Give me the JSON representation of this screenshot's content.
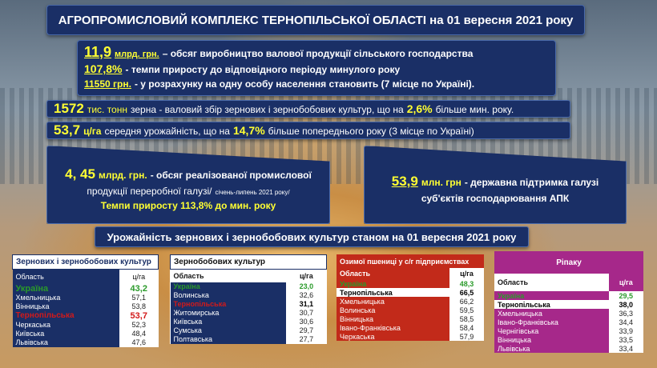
{
  "title": "АГРОПРОМИСЛОВИЙ КОМПЛЕКС ТЕРНОПІЛЬСЬКОЇ ОБЛАСТІ на 01 вересня 2021 року",
  "info": {
    "l1_big": "11,9",
    "l1_unit": "млрд. грн.",
    "l1_text": "– обсяг виробництво валової продукції сільського господарства",
    "l2_big": "107,8%",
    "l2_text": "- темпи приросту до відповідного періоду минулого року",
    "l3_big": "11550 грн.",
    "l3_text": "-  у розрахунку на одну особу населення становить (7 місце по Україні)."
  },
  "line2": {
    "big": "1572",
    "unit": "тис. тонн",
    "text1": "зерна - валовий збір зернових і зернобобових культур, що на",
    "pct": "2,6%",
    "text2": "більше мин. року."
  },
  "line3": {
    "big": "53,7",
    "unit": "ц/га",
    "text1": "середня урожайність, що на",
    "pct": "14,7%",
    "text2": "більше попереднього року (3 місце по Україні)"
  },
  "box4": {
    "big": "4, 45",
    "unit": "млрд. грн.",
    "t1": "- обсяг реалізованої промислової",
    "t2": "продукції переробної галузі/",
    "t2small": "січень-липень 2021 року/",
    "t3": "Темпи приросту 113,8% до мин. року"
  },
  "box5": {
    "big": "53,9",
    "unit": "млн. грн",
    "t1": "-  державна підтримка галузі",
    "t2": "суб'єктів господарювання АПК"
  },
  "subtitle": "Урожайність зернових і зернобобових культур станом на 01 вересня 2021 року",
  "tables": [
    {
      "title": "Зернових і зернобобових культур",
      "col1": "Область",
      "col2": "ц/га",
      "rows": [
        [
          "Україна",
          "43,2"
        ],
        [
          "Хмельницька",
          "57,1"
        ],
        [
          "Вінницька",
          "53,8"
        ],
        [
          "Тернопільська",
          "53,7"
        ],
        [
          "Черкаська",
          "52,3"
        ],
        [
          "Київська",
          "48,4"
        ],
        [
          "Львівська",
          "47,6"
        ]
      ]
    },
    {
      "title": "Зернобобових культур",
      "col1": "Область",
      "col2": "ц/га",
      "rows": [
        [
          "Україна",
          "23,0"
        ],
        [
          "Волинська",
          "32,6"
        ],
        [
          "Тернопільська",
          "31,1"
        ],
        [
          "Житомирська",
          "30,7"
        ],
        [
          "Київська",
          "30,6"
        ],
        [
          "Сумська",
          "29,7"
        ],
        [
          "Полтавська",
          "27,7"
        ]
      ]
    },
    {
      "title": "Озимої пшениці у с/г підприємствах",
      "col1": "Область",
      "col2": "ц/га",
      "rows": [
        [
          "Україна",
          "48,3"
        ],
        [
          "Тернопільська",
          "66,5"
        ],
        [
          "Хмельницька",
          "66,2"
        ],
        [
          "Волинська",
          "59,5"
        ],
        [
          "Вінницька",
          "58,5"
        ],
        [
          "Івано-Франківська",
          "58,4"
        ],
        [
          "Черкаська",
          "57,9"
        ]
      ]
    },
    {
      "title": "Ріпаку",
      "col1": "Область",
      "col2": "ц/га",
      "rows": [
        [
          "Україна",
          "29,5"
        ],
        [
          "Тернопільська",
          "38,0"
        ],
        [
          "Хмельницька",
          "36,3"
        ],
        [
          "Івано-Франківська",
          "34,4"
        ],
        [
          "Чернігівська",
          "33,9"
        ],
        [
          "Вінницька",
          "33,5"
        ],
        [
          "Львівська",
          "33,4"
        ]
      ]
    }
  ]
}
